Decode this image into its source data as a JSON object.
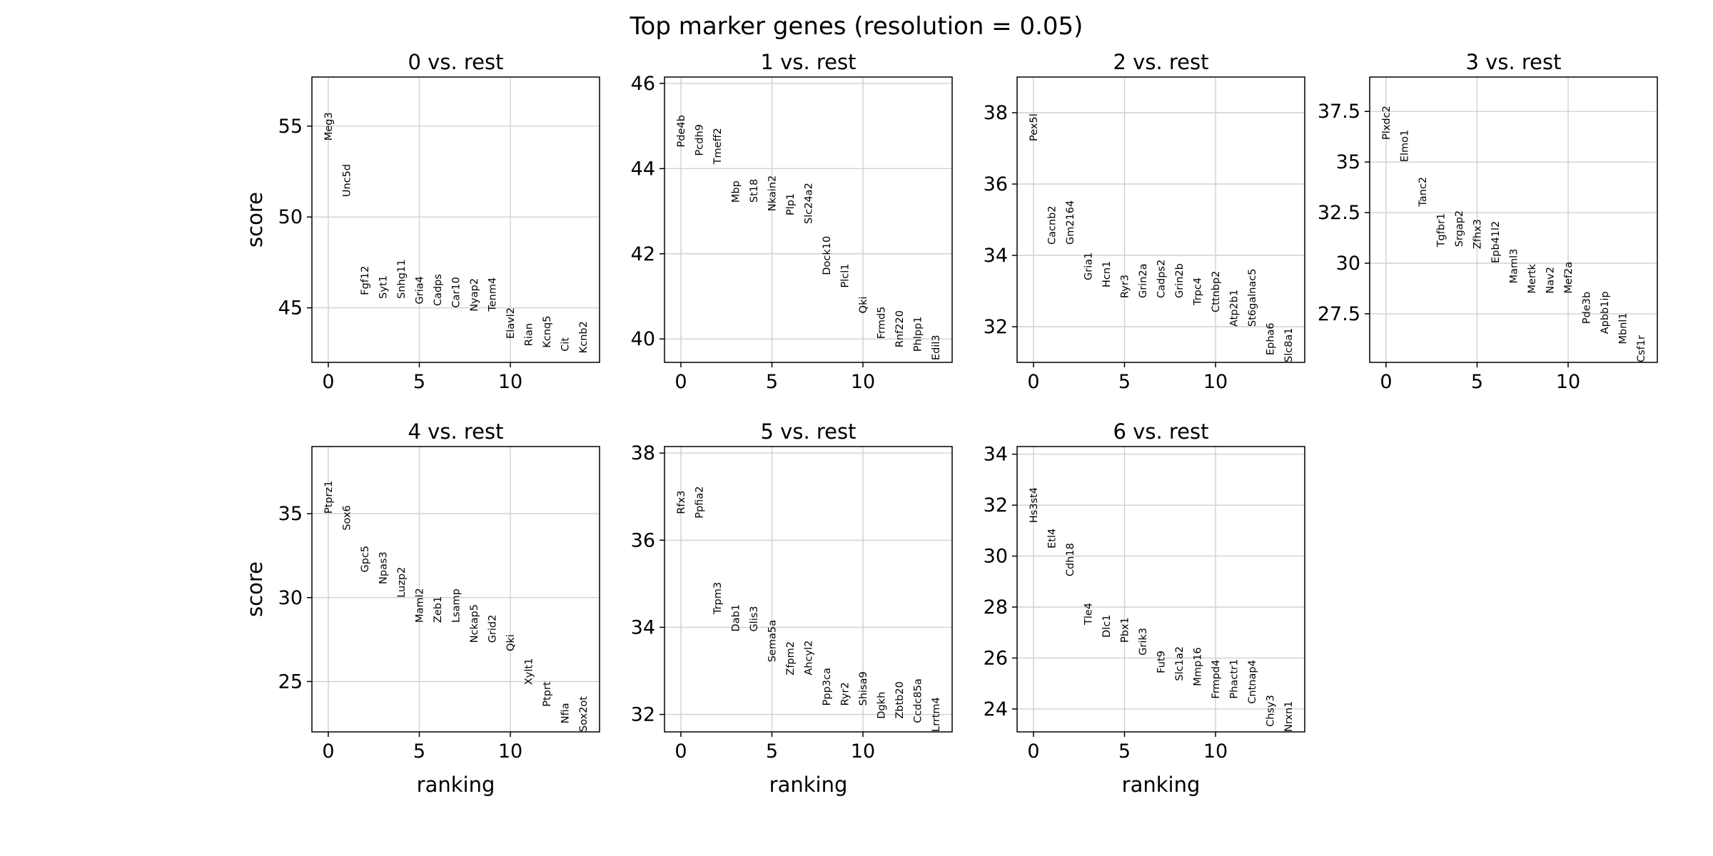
{
  "figure": {
    "title": "Top marker genes (resolution = 0.05)",
    "xlabel": "ranking",
    "ylabel": "score"
  },
  "chart_data": [
    {
      "type": "scatter",
      "title": "0 vs. rest",
      "xlabel": "",
      "ylabel": "score",
      "xlim": [
        -0.9,
        14.9
      ],
      "ylim": [
        42.0,
        57.7
      ],
      "xticks": [
        0,
        5,
        10
      ],
      "yticks": [
        45,
        50,
        55
      ],
      "grid": true,
      "genes": [
        "Meg3",
        "Unc5d",
        "Fgf12",
        "Syt1",
        "Snhg11",
        "Gria4",
        "Cadps",
        "Car10",
        "Nyap2",
        "Tenm4",
        "Elavl2",
        "Rian",
        "Kcnq5",
        "Cit",
        "Kcnb2"
      ],
      "scores": [
        54.2,
        51.1,
        45.7,
        45.5,
        45.5,
        45.2,
        45.1,
        45.0,
        44.8,
        44.8,
        43.3,
        42.9,
        42.8,
        42.6,
        42.5
      ]
    },
    {
      "type": "scatter",
      "title": "1 vs. rest",
      "xlabel": "",
      "ylabel": "",
      "xlim": [
        -0.9,
        14.9
      ],
      "ylim": [
        39.45,
        46.15
      ],
      "xticks": [
        0,
        5,
        10
      ],
      "yticks": [
        40,
        42,
        44,
        46
      ],
      "grid": true,
      "genes": [
        "Pde4b",
        "Pcdh9",
        "Tmeff2",
        "Mbp",
        "St18",
        "Nkain2",
        "Plp1",
        "Slc24a2",
        "Dock10",
        "Plcl1",
        "Qki",
        "Frmd5",
        "Rnf220",
        "Phlpp1",
        "Edil3"
      ],
      "scores": [
        44.5,
        44.3,
        44.1,
        43.2,
        43.2,
        43.0,
        42.9,
        42.7,
        41.5,
        41.2,
        40.6,
        40.0,
        39.8,
        39.7,
        39.5
      ]
    },
    {
      "type": "scatter",
      "title": "2 vs. rest",
      "xlabel": "",
      "ylabel": "",
      "xlim": [
        -0.9,
        14.9
      ],
      "ylim": [
        31.0,
        39.0
      ],
      "xticks": [
        0,
        5,
        10
      ],
      "yticks": [
        32,
        34,
        36,
        38
      ],
      "grid": true,
      "genes": [
        "Pex5l",
        "Cacnb2",
        "Gm2164",
        "Gria1",
        "Hcn1",
        "Ryr3",
        "Grin2a",
        "Cadps2",
        "Grin2b",
        "Trpc4",
        "Cttnbp2",
        "Atp2b1",
        "St6galnac5",
        "Epha6",
        "Slc8a1"
      ],
      "scores": [
        37.2,
        34.3,
        34.3,
        33.3,
        33.1,
        32.8,
        32.8,
        32.8,
        32.8,
        32.6,
        32.4,
        32.0,
        32.0,
        31.2,
        31.0
      ]
    },
    {
      "type": "scatter",
      "title": "3 vs. rest",
      "xlabel": "",
      "ylabel": "",
      "xlim": [
        -0.9,
        14.9
      ],
      "ylim": [
        25.1,
        39.2
      ],
      "xticks": [
        0,
        5,
        10
      ],
      "yticks": [
        27.5,
        30.0,
        32.5,
        35.0,
        37.5
      ],
      "grid": true,
      "genes": [
        "Plxdc2",
        "Elmo1",
        "Tanc2",
        "Tgfbr1",
        "Srgap2",
        "Zfhx3",
        "Epb41l2",
        "Maml3",
        "Mertk",
        "Nav2",
        "Mef2a",
        "Pde3b",
        "Apbb1ip",
        "Mbnl1",
        "Csf1r"
      ],
      "scores": [
        36.1,
        35.0,
        32.8,
        30.8,
        30.8,
        30.7,
        30.0,
        29.0,
        28.5,
        28.5,
        28.5,
        27.0,
        26.5,
        26.0,
        25.1
      ]
    },
    {
      "type": "scatter",
      "title": "4 vs. rest",
      "xlabel": "ranking",
      "ylabel": "score",
      "xlim": [
        -0.9,
        14.9
      ],
      "ylim": [
        22.0,
        39.0
      ],
      "xticks": [
        0,
        5,
        10
      ],
      "yticks": [
        25,
        30,
        35
      ],
      "grid": true,
      "genes": [
        "Ptprz1",
        "Sox6",
        "Gpc5",
        "Npas3",
        "Luzp2",
        "Maml2",
        "Zeb1",
        "Lsamp",
        "Nckap5",
        "Grid2",
        "Qki",
        "Xylt1",
        "Ptprt",
        "Nfia",
        "Sox2ot"
      ],
      "scores": [
        35.0,
        34.0,
        31.5,
        30.8,
        30.0,
        28.5,
        28.5,
        28.5,
        27.3,
        27.3,
        26.8,
        24.8,
        23.5,
        22.5,
        22.0
      ]
    },
    {
      "type": "scatter",
      "title": "5 vs. rest",
      "xlabel": "ranking",
      "ylabel": "",
      "xlim": [
        -0.9,
        14.9
      ],
      "ylim": [
        31.6,
        38.15
      ],
      "xticks": [
        0,
        5,
        10
      ],
      "yticks": [
        32,
        34,
        36,
        38
      ],
      "grid": true,
      "genes": [
        "Rfx3",
        "Ppfia2",
        "Trpm3",
        "Dab1",
        "Glis3",
        "Sema5a",
        "Zfpm2",
        "Ahcyl2",
        "Ppp3ca",
        "Ryr2",
        "Shisa9",
        "Dgkh",
        "Zbtb20",
        "Ccdc85a",
        "Lrrtm4"
      ],
      "scores": [
        36.6,
        36.5,
        34.3,
        33.9,
        33.9,
        33.2,
        32.9,
        32.9,
        32.2,
        32.2,
        32.2,
        31.9,
        31.9,
        31.8,
        31.6
      ]
    },
    {
      "type": "scatter",
      "title": "6 vs. rest",
      "xlabel": "ranking",
      "ylabel": "",
      "xlim": [
        -0.9,
        14.9
      ],
      "ylim": [
        23.1,
        34.3
      ],
      "xticks": [
        0,
        5,
        10
      ],
      "yticks": [
        24,
        26,
        28,
        30,
        32,
        34
      ],
      "grid": true,
      "genes": [
        "Hs3st4",
        "Etl4",
        "Cdh18",
        "Tle4",
        "Dlc1",
        "Pbx1",
        "Grik3",
        "Fut9",
        "Slc1a2",
        "Mmp16",
        "Frmpd4",
        "Phactr1",
        "Cntnap4",
        "Chsy3",
        "Nrxn1"
      ],
      "scores": [
        31.3,
        30.3,
        29.2,
        27.3,
        26.8,
        26.6,
        26.1,
        25.4,
        25.1,
        24.9,
        24.4,
        24.4,
        24.2,
        23.3,
        23.1
      ]
    }
  ]
}
